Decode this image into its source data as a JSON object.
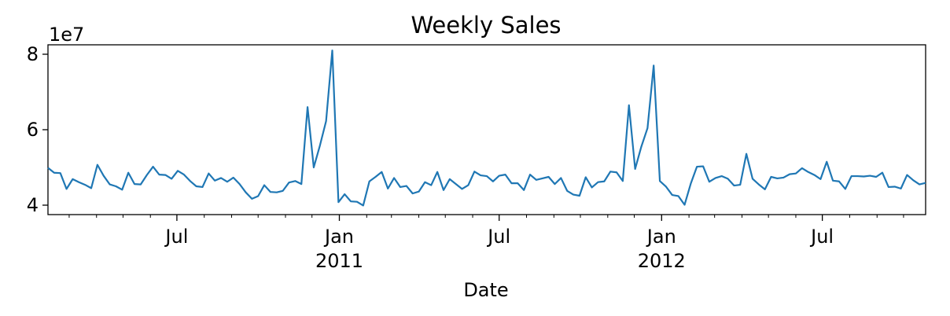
{
  "chart_data": {
    "type": "line",
    "title": "Weekly Sales",
    "xlabel": "Date",
    "ylabel": "",
    "y_offset_label": "1e7",
    "y_scale_factor": 10000000,
    "ylim": [
      3.75,
      8.25
    ],
    "yticks": [
      4,
      6,
      8
    ],
    "xlim": [
      "2010-02-05",
      "2012-10-26"
    ],
    "x_major_ticks": [
      {
        "date": "2010-07-01",
        "label": "Jul",
        "sub": ""
      },
      {
        "date": "2011-01-01",
        "label": "Jan",
        "sub": "2011"
      },
      {
        "date": "2011-07-01",
        "label": "Jul",
        "sub": ""
      },
      {
        "date": "2012-01-01",
        "label": "Jan",
        "sub": "2012"
      },
      {
        "date": "2012-07-01",
        "label": "Jul",
        "sub": ""
      }
    ],
    "x_minor_ticks": [
      "2010-03-01",
      "2010-04-01",
      "2010-05-01",
      "2010-06-01",
      "2010-08-01",
      "2010-09-01",
      "2010-10-01",
      "2010-11-01",
      "2010-12-01",
      "2011-02-01",
      "2011-03-01",
      "2011-04-01",
      "2011-05-01",
      "2011-06-01",
      "2011-08-01",
      "2011-09-01",
      "2011-10-01",
      "2011-11-01",
      "2011-12-01",
      "2012-02-01",
      "2012-03-01",
      "2012-04-01",
      "2012-05-01",
      "2012-06-01",
      "2012-08-01",
      "2012-09-01",
      "2012-10-01"
    ],
    "grid": false,
    "series": [
      {
        "name": "",
        "color": "#1f77b4",
        "x_start": "2010-02-05",
        "x_step": "weekly",
        "values": [
          4.99,
          4.86,
          4.85,
          4.43,
          4.69,
          4.61,
          4.54,
          4.45,
          5.07,
          4.78,
          4.55,
          4.5,
          4.41,
          4.86,
          4.56,
          4.55,
          4.8,
          5.02,
          4.81,
          4.8,
          4.7,
          4.91,
          4.81,
          4.64,
          4.5,
          4.48,
          4.84,
          4.65,
          4.72,
          4.62,
          4.73,
          4.56,
          4.34,
          4.17,
          4.24,
          4.53,
          4.35,
          4.34,
          4.38,
          4.6,
          4.64,
          4.56,
          6.6,
          5.0,
          5.58,
          6.23,
          8.1,
          4.08,
          4.29,
          4.1,
          4.09,
          3.99,
          4.63,
          4.75,
          4.88,
          4.44,
          4.72,
          4.48,
          4.51,
          4.31,
          4.36,
          4.61,
          4.53,
          4.88,
          4.4,
          4.69,
          4.56,
          4.43,
          4.53,
          4.89,
          4.79,
          4.77,
          4.63,
          4.78,
          4.81,
          4.58,
          4.58,
          4.4,
          4.81,
          4.67,
          4.71,
          4.75,
          4.56,
          4.72,
          4.38,
          4.28,
          4.25,
          4.74,
          4.47,
          4.61,
          4.63,
          4.89,
          4.87,
          4.64,
          6.65,
          4.96,
          5.55,
          6.04,
          7.7,
          4.64,
          4.49,
          4.27,
          4.24,
          4.01,
          4.57,
          5.02,
          5.03,
          4.62,
          4.72,
          4.77,
          4.7,
          4.52,
          4.54,
          5.36,
          4.7,
          4.55,
          4.42,
          4.75,
          4.71,
          4.73,
          4.82,
          4.84,
          4.98,
          4.88,
          4.8,
          4.69,
          5.15,
          4.65,
          4.63,
          4.43,
          4.77,
          4.77,
          4.76,
          4.78,
          4.75,
          4.86,
          4.48,
          4.49,
          4.44,
          4.8,
          4.66,
          4.55,
          4.59
        ]
      }
    ]
  }
}
